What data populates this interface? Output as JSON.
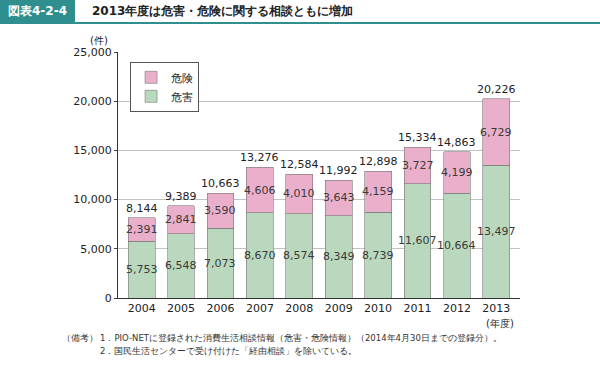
{
  "chart_data": {
    "type": "bar",
    "figure_number": "図表4-2-4",
    "title": "2013年度は危害・危険に関する相談ともに増加",
    "y_label": "(件)",
    "x_label": "(年度)",
    "categories": [
      "2004",
      "2005",
      "2006",
      "2007",
      "2008",
      "2009",
      "2010",
      "2011",
      "2012",
      "2013"
    ],
    "series": [
      {
        "name": "危害",
        "color": "#b9d8bd",
        "values": [
          5753,
          6548,
          7073,
          8670,
          8574,
          8349,
          8739,
          11607,
          10664,
          13497
        ],
        "value_labels": [
          "5,753",
          "6,548",
          "7,073",
          "8,670",
          "8,574",
          "8,349",
          "8,739",
          "11,607",
          "10,664",
          "13,497"
        ]
      },
      {
        "name": "危険",
        "color": "#eab0cb",
        "values": [
          2391,
          2841,
          3590,
          4606,
          4010,
          3643,
          4159,
          3727,
          4199,
          6729
        ],
        "value_labels": [
          "2,391",
          "2,841",
          "3,590",
          "4,606",
          "4,010",
          "3,643",
          "4,159",
          "3,727",
          "4,199",
          "6,729"
        ]
      }
    ],
    "totals": [
      8144,
      9389,
      10663,
      13276,
      12584,
      11992,
      12898,
      15334,
      14863,
      20226
    ],
    "total_labels": [
      "8,144",
      "9,389",
      "10,663",
      "13,276",
      "12,584",
      "11,992",
      "12,898",
      "15,334",
      "14,863",
      "20,226"
    ],
    "stacked": true,
    "data_labels": true,
    "ylim": [
      0,
      25000
    ],
    "yticks": [
      0,
      {
        "value": 5000,
        "label": "5,000"
      },
      {
        "value": 10000,
        "label": "10,000"
      },
      {
        "value": 15000,
        "label": "15,000"
      },
      {
        "value": 20000,
        "label": "20,000"
      },
      {
        "value": 25000,
        "label": "25,000"
      }
    ],
    "grid": true,
    "legend": "top left",
    "notes_label": "（備考）",
    "notes": [
      "1．PIO-NETに登録された消費生活相談情報（危害・危険情報）（2014年4月30日までの登録分）。",
      "2．国民生活センターで受け付けた「経由相談」を除いている。"
    ]
  }
}
